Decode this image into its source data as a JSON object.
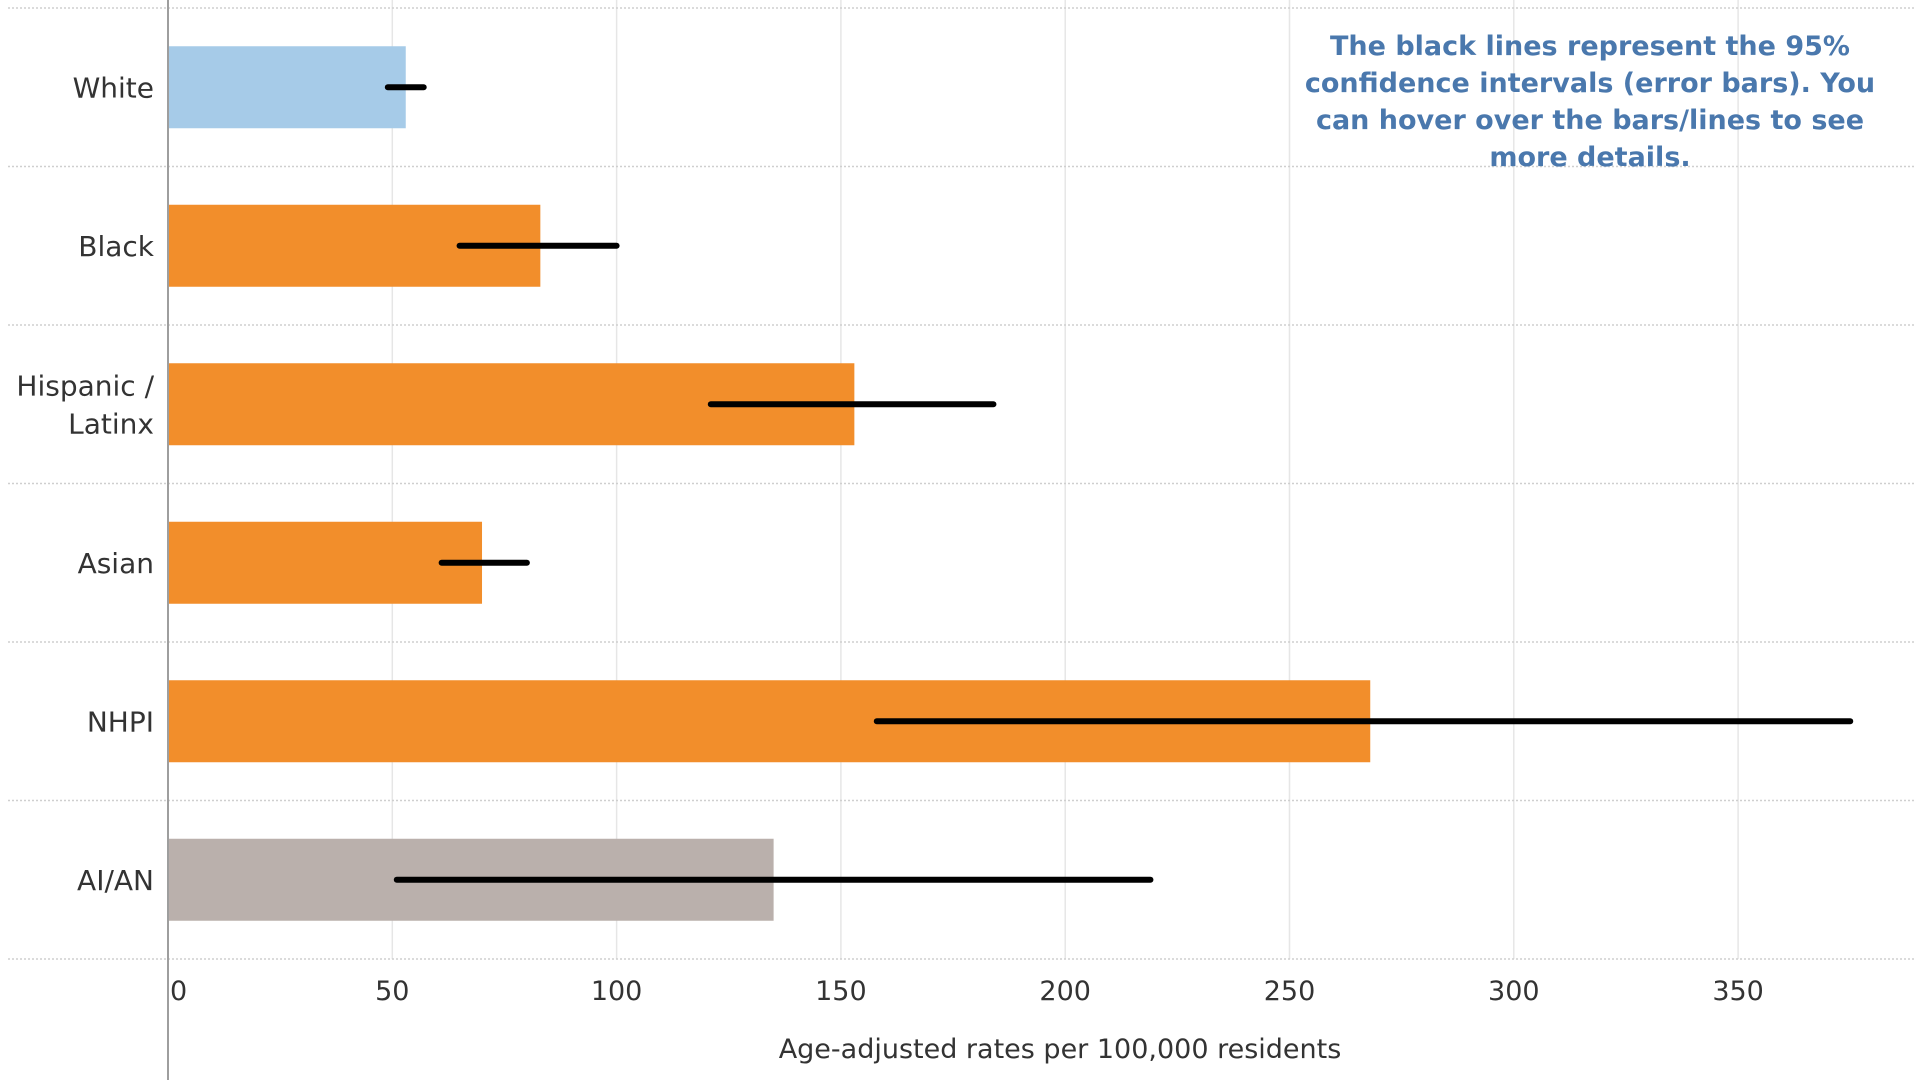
{
  "chart_data": {
    "type": "bar",
    "orientation": "horizontal",
    "categories": [
      "White",
      "Black",
      "Hispanic /\nLatinx",
      "Asian",
      "NHPI",
      "AI/AN"
    ],
    "values": [
      53,
      83,
      153,
      70,
      268,
      135
    ],
    "ci_low": [
      49,
      65,
      121,
      61,
      158,
      51
    ],
    "ci_high": [
      57,
      100,
      184,
      80,
      375,
      219
    ],
    "bar_colors": [
      "#a6cbe8",
      "#f28e2b",
      "#f28e2b",
      "#f28e2b",
      "#f28e2b",
      "#bab0ac"
    ],
    "error_bar_color": "#000000",
    "xlabel": "Age-adjusted rates per 100,000 residents",
    "xlim": [
      0,
      380
    ],
    "xticks": [
      0,
      50,
      100,
      150,
      200,
      250,
      300,
      350
    ],
    "grid": true,
    "annotation": "The black lines represent the 95% confidence intervals (error bars). You can hover over the bars/lines to see more details."
  }
}
